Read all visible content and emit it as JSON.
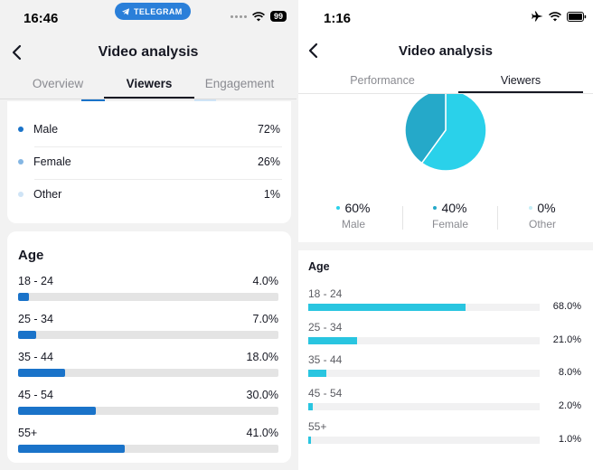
{
  "left": {
    "status": {
      "time": "16:46",
      "pill_label": "TELEGRAM",
      "battery": "99"
    },
    "title": "Video analysis",
    "tabs": [
      "Overview",
      "Viewers",
      "Engagement"
    ],
    "active_tab": "Viewers",
    "gender": [
      {
        "label": "Male",
        "value": "72%",
        "color": "#1a73c9"
      },
      {
        "label": "Female",
        "value": "26%",
        "color": "#84b6e3"
      },
      {
        "label": "Other",
        "value": "1%",
        "color": "#cfe4f6"
      }
    ],
    "age_title": "Age",
    "age": [
      {
        "range": "18 - 24",
        "value": "4.0%",
        "percent": 4.0
      },
      {
        "range": "25 - 34",
        "value": "7.0%",
        "percent": 7.0
      },
      {
        "range": "35 - 44",
        "value": "18.0%",
        "percent": 18.0
      },
      {
        "range": "45 - 54",
        "value": "30.0%",
        "percent": 30.0
      },
      {
        "range": "55+",
        "value": "41.0%",
        "percent": 41.0
      }
    ]
  },
  "right": {
    "status": {
      "time": "1:16"
    },
    "title": "Video analysis",
    "tabs": [
      "Performance",
      "Viewers"
    ],
    "active_tab": "Viewers",
    "gender": [
      {
        "label": "Male",
        "value": "60%",
        "share": 60,
        "color": "#2ad1ea"
      },
      {
        "label": "Female",
        "value": "40%",
        "share": 40,
        "color": "#25a9c9"
      },
      {
        "label": "Other",
        "value": "0%",
        "share": 0,
        "color": "#c5eef6"
      }
    ],
    "age_title": "Age",
    "age": [
      {
        "range": "18 - 24",
        "value": "68.0%",
        "percent": 68.0
      },
      {
        "range": "25 - 34",
        "value": "21.0%",
        "percent": 21.0
      },
      {
        "range": "35 - 44",
        "value": "8.0%",
        "percent": 8.0
      },
      {
        "range": "45 - 54",
        "value": "2.0%",
        "percent": 2.0
      },
      {
        "range": "55+",
        "value": "1.0%",
        "percent": 1.0
      }
    ]
  },
  "colors": {
    "left_accent": "#1a73c9",
    "right_accent": "#29c5e0",
    "telegram_blue": "#2a7fd9"
  },
  "icons": [
    "back-arrow-icon",
    "telegram-icon",
    "signal-dots-icon",
    "wifi-icon",
    "battery-icon",
    "airplane-icon"
  ]
}
